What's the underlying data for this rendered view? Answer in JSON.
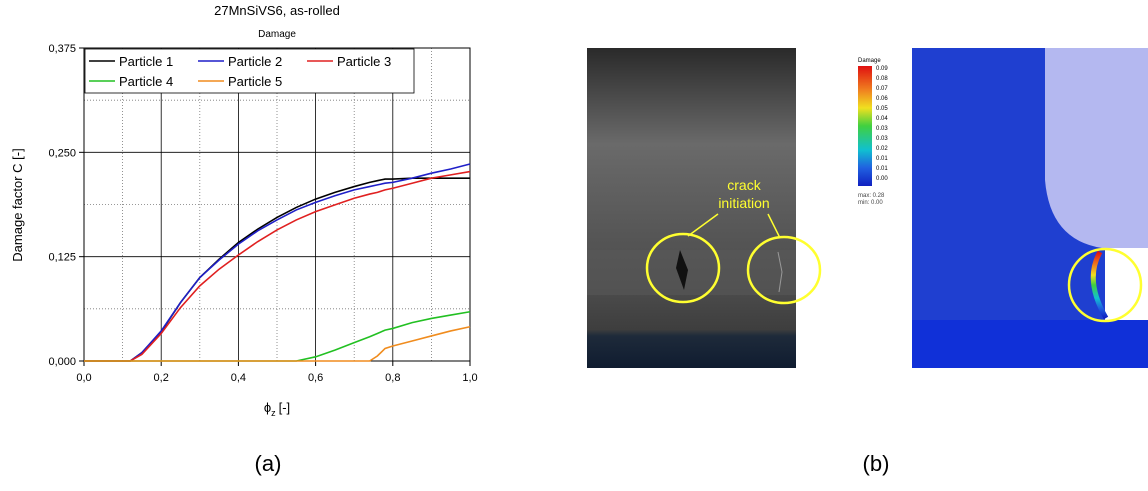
{
  "chart_data": {
    "type": "line",
    "title": "27MnSiVS6, as-rolled",
    "subtitle": "Damage",
    "xlabel": "ϕ",
    "xlabel_sub": "z",
    "xlabel_unit": "[-]",
    "ylabel": "Damage factor C [-]",
    "x": [
      0,
      0.1,
      0.12,
      0.15,
      0.2,
      0.25,
      0.3,
      0.35,
      0.4,
      0.45,
      0.5,
      0.55,
      0.6,
      0.65,
      0.7,
      0.74,
      0.76,
      0.78,
      0.8,
      0.85,
      0.9,
      0.95,
      1.0
    ],
    "series": [
      {
        "name": "Particle 1",
        "color": "#000000",
        "values": [
          0,
          0,
          0,
          0.01,
          0.035,
          0.07,
          0.1,
          0.122,
          0.142,
          0.158,
          0.172,
          0.184,
          0.194,
          0.202,
          0.209,
          0.214,
          0.216,
          0.218,
          0.218,
          0.219,
          0.219,
          0.219,
          0.219
        ]
      },
      {
        "name": "Particle 2",
        "color": "#1f1fc8",
        "values": [
          0,
          0,
          0,
          0.01,
          0.036,
          0.07,
          0.1,
          0.121,
          0.14,
          0.156,
          0.169,
          0.181,
          0.19,
          0.198,
          0.205,
          0.209,
          0.211,
          0.213,
          0.214,
          0.219,
          0.225,
          0.23,
          0.236
        ]
      },
      {
        "name": "Particle 3",
        "color": "#e02020",
        "values": [
          0,
          0,
          0,
          0.008,
          0.033,
          0.064,
          0.09,
          0.11,
          0.127,
          0.143,
          0.157,
          0.169,
          0.179,
          0.187,
          0.195,
          0.2,
          0.202,
          0.205,
          0.207,
          0.213,
          0.219,
          0.223,
          0.227
        ]
      },
      {
        "name": "Particle 4",
        "color": "#22c022",
        "values": [
          0,
          0,
          0,
          0,
          0,
          0,
          0,
          0,
          0,
          0,
          0,
          0,
          0.005,
          0.013,
          0.022,
          0.029,
          0.033,
          0.037,
          0.039,
          0.046,
          0.051,
          0.055,
          0.059
        ]
      },
      {
        "name": "Particle 5",
        "color": "#f08c1e",
        "values": [
          0,
          0,
          0,
          0,
          0,
          0,
          0,
          0,
          0,
          0,
          0,
          0,
          0,
          0,
          0,
          0,
          0.006,
          0.015,
          0.018,
          0.024,
          0.03,
          0.036,
          0.041
        ]
      }
    ],
    "xlim": [
      0,
      1.0
    ],
    "ylim": [
      0,
      0.375
    ],
    "xticks": [
      {
        "value": 0,
        "label": "0,0"
      },
      {
        "value": 0.2,
        "label": "0,2"
      },
      {
        "value": 0.4,
        "label": "0,4"
      },
      {
        "value": 0.6,
        "label": "0,6"
      },
      {
        "value": 0.8,
        "label": "0,8"
      },
      {
        "value": 1.0,
        "label": "1,0"
      }
    ],
    "yticks": [
      {
        "value": 0,
        "label": "0,000"
      },
      {
        "value": 0.125,
        "label": "0,125"
      },
      {
        "value": 0.25,
        "label": "0,250"
      },
      {
        "value": 0.375,
        "label": "0,375"
      }
    ],
    "xminor": [
      0.1,
      0.3,
      0.5,
      0.7,
      0.9
    ],
    "yminor": [
      0.0625,
      0.1875,
      0.3125
    ],
    "grid": true,
    "legend": "top-left"
  },
  "figure": {
    "label_a": "(a)",
    "label_b": "(b)",
    "annotation": [
      "crack",
      "initiation"
    ],
    "contour": {
      "title": "Damage",
      "labels": [
        "0.09",
        "0.08",
        "0.07",
        "0.06",
        "0.05",
        "0.04",
        "0.03",
        "0.03",
        "0.02",
        "0.01",
        "0.01",
        "0.00"
      ],
      "max": "max: 0.28",
      "min": "min: 0.00"
    }
  }
}
